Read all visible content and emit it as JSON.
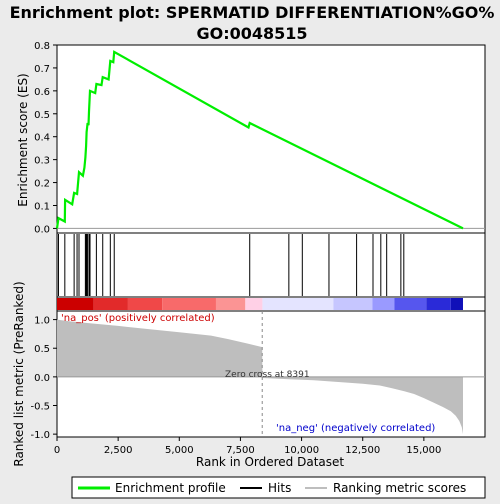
{
  "chart_data": {
    "type": "line",
    "title_line1": "Enrichment plot: SPERMATID DIFFERENTIATION%GO%",
    "title_line2": "GO:0048515",
    "es_panel": {
      "ylabel": "Enrichment score (ES)",
      "ylim": [
        -0.02,
        0.8
      ],
      "yticks": [
        "0.0",
        "0.1",
        "0.2",
        "0.3",
        "0.4",
        "0.5",
        "0.6",
        "0.7",
        "0.8"
      ],
      "ytick_values": [
        0.0,
        0.1,
        0.2,
        0.3,
        0.4,
        0.5,
        0.6,
        0.7,
        0.8
      ],
      "line_color": "#00ee00",
      "x": [
        0,
        60,
        320,
        330,
        620,
        700,
        820,
        900,
        1060,
        1120,
        1160,
        1190,
        1210,
        1250,
        1290,
        1310,
        1350,
        1560,
        1610,
        1820,
        1870,
        2110,
        2180,
        2300,
        2340,
        7830,
        7880,
        16600
      ],
      "y": [
        0.0,
        0.045,
        0.03,
        0.125,
        0.105,
        0.155,
        0.15,
        0.245,
        0.23,
        0.265,
        0.31,
        0.36,
        0.42,
        0.46,
        0.45,
        0.51,
        0.6,
        0.59,
        0.63,
        0.625,
        0.66,
        0.65,
        0.73,
        0.725,
        0.77,
        0.44,
        0.46,
        0.0
      ]
    },
    "hits": [
      60,
      320,
      700,
      820,
      900,
      1160,
      1190,
      1210,
      1250,
      1310,
      1350,
      1610,
      1870,
      2180,
      2340,
      7880,
      9480,
      10030,
      11120,
      12250,
      12920,
      13240,
      13480,
      14060,
      14180
    ],
    "metric_panel": {
      "ylabel": "Ranked list metric (PreRanked)",
      "ylim": [
        -1.05,
        1.15
      ],
      "yticks": [
        "1.0",
        "0.5",
        "0.0",
        "-0.5",
        "-1.0"
      ],
      "ytick_values": [
        1.0,
        0.5,
        0.0,
        -0.5,
        -1.0
      ],
      "fill_color": "#bebebe",
      "x": [
        0,
        500,
        1500,
        2500,
        3600,
        5000,
        6300,
        7000,
        7800,
        8391,
        8400,
        9500,
        10500,
        11500,
        12500,
        13200,
        13700,
        14200,
        14600,
        15000,
        15400,
        15800,
        16100,
        16300,
        16450,
        16550,
        16600
      ],
      "y": [
        1.0,
        0.97,
        0.93,
        0.89,
        0.84,
        0.78,
        0.72,
        0.66,
        0.58,
        0.52,
        -0.02,
        -0.04,
        -0.06,
        -0.09,
        -0.12,
        -0.15,
        -0.2,
        -0.25,
        -0.3,
        -0.37,
        -0.45,
        -0.53,
        -0.6,
        -0.68,
        -0.77,
        -0.88,
        -1.0
      ]
    },
    "zero_cross_label": "Zero cross at 8391",
    "zero_cross_x": 8391,
    "pos_label": "'na_pos' (positively correlated)",
    "neg_label": "'na_neg' (negatively correlated)",
    "xlabel": "Rank in Ordered Dataset",
    "xlim": [
      0,
      17500
    ],
    "xticks": [
      "0",
      "2,500",
      "5,000",
      "7,500",
      "10,000",
      "12,500",
      "15,000"
    ],
    "xtick_values": [
      0,
      2500,
      5000,
      7500,
      10000,
      12500,
      15000
    ],
    "heatmap_segments": [
      {
        "from": 0,
        "to": 1500,
        "color": "#cc0000"
      },
      {
        "from": 1500,
        "to": 2900,
        "color": "#e22a2a"
      },
      {
        "from": 2900,
        "to": 4300,
        "color": "#f04848"
      },
      {
        "from": 4300,
        "to": 6500,
        "color": "#f86a6a"
      },
      {
        "from": 6500,
        "to": 7700,
        "color": "#fb9494"
      },
      {
        "from": 7700,
        "to": 8400,
        "color": "#ffd0e6"
      },
      {
        "from": 8400,
        "to": 11300,
        "color": "#e4e4ff"
      },
      {
        "from": 11300,
        "to": 12900,
        "color": "#c6c6ff"
      },
      {
        "from": 12900,
        "to": 13800,
        "color": "#9a9aff"
      },
      {
        "from": 13800,
        "to": 15100,
        "color": "#5656ee"
      },
      {
        "from": 15100,
        "to": 16100,
        "color": "#2a2ad8"
      },
      {
        "from": 16100,
        "to": 16600,
        "color": "#1010b8"
      }
    ],
    "legend": {
      "items": [
        "Enrichment profile",
        "Hits",
        "Ranking metric scores"
      ],
      "colors": [
        "#00ee00",
        "#000000",
        "#bebebe"
      ]
    }
  }
}
